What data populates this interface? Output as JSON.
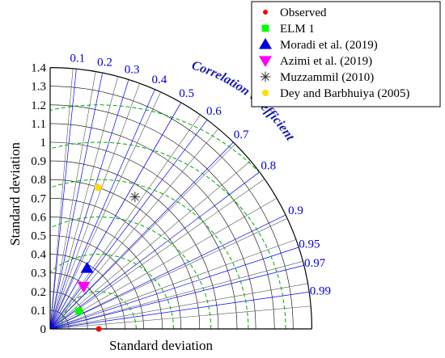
{
  "chart_data": {
    "type": "scatter",
    "subtype": "taylor-diagram",
    "title": "",
    "xlabel": "Standard deviation",
    "ylabel": "Standard deviation",
    "arc_label": "Correlation Coefficient",
    "std_range": [
      0,
      1.4
    ],
    "std_ticks": [
      "0",
      "0.1",
      "0.2",
      "0.3",
      "0.4",
      "0.5",
      "0.6",
      "0.7",
      "0.8",
      "0.9",
      "1",
      "1.1",
      "1.2",
      "1.3",
      "1.4"
    ],
    "correlation_ticks": [
      "0.1",
      "0.2",
      "0.3",
      "0.4",
      "0.5",
      "0.6",
      "0.7",
      "0.8",
      "0.9",
      "0.95",
      "0.97",
      "0.99"
    ],
    "rms_contours": [
      0.2,
      0.4,
      0.6,
      0.8,
      1.0,
      1.2
    ],
    "grid": true,
    "legend_position": "top-right",
    "series": [
      {
        "name": "Observed",
        "marker": "circle",
        "color": "#ff0000",
        "correlation": 1.0,
        "std": 0.26
      },
      {
        "name": "ELM 1",
        "marker": "square",
        "color": "#00ff00",
        "correlation": 0.85,
        "std": 0.18
      },
      {
        "name": "Moradi et al. (2019)",
        "marker": "triangle-up",
        "color": "#0000dd",
        "correlation": 0.52,
        "std": 0.38
      },
      {
        "name": "Azimi et al. (2019)",
        "marker": "triangle-down",
        "color": "#ff00ff",
        "correlation": 0.62,
        "std": 0.29
      },
      {
        "name": "Muzzammil (2010)",
        "marker": "asterisk",
        "color": "#333333",
        "correlation": 0.54,
        "std": 0.84
      },
      {
        "name": "Dey and Barbhuiya (2005)",
        "marker": "circle",
        "color": "#ffdd00",
        "correlation": 0.32,
        "std": 0.8
      }
    ]
  },
  "colors": {
    "correlation_lines": "#0000ff",
    "std_arcs": "#000000",
    "rms_arcs": "#00aa00",
    "tick_text": "#0000cc",
    "axis_text": "#000000"
  }
}
